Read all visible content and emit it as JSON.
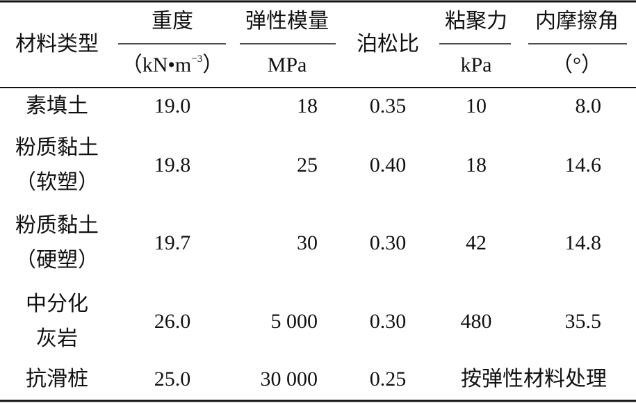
{
  "table": {
    "header": [
      {
        "label": "材料类型"
      },
      {
        "label": "重度",
        "unit": "（kN•m",
        "unit_sup": "−3",
        "unit_end": "）"
      },
      {
        "label": "弹性模量",
        "unit": "MPa"
      },
      {
        "label": "泊松比"
      },
      {
        "label": "粘聚力",
        "unit": "kPa"
      },
      {
        "label": "内摩擦角",
        "unit": "（°）"
      }
    ],
    "rows": [
      {
        "name": [
          "素填土"
        ],
        "cells": [
          "19.0",
          "18",
          "0.35",
          "10",
          "8.0"
        ]
      },
      {
        "name": [
          "粉质黏土",
          "（软塑）"
        ],
        "cells": [
          "19.8",
          "25",
          "0.40",
          "18",
          "14.6"
        ]
      },
      {
        "name": [
          "粉质黏土",
          "（硬塑）"
        ],
        "cells": [
          "19.7",
          "30",
          "0.30",
          "42",
          "14.8"
        ]
      },
      {
        "name": [
          "中分化",
          "灰岩"
        ],
        "cells": [
          "26.0",
          "5 000",
          "0.30",
          "480",
          "35.5"
        ]
      },
      {
        "name": [
          "抗滑桩"
        ],
        "cells": [
          "25.0",
          "30 000",
          "0.25",
          "按弹性材料处理"
        ]
      }
    ]
  }
}
